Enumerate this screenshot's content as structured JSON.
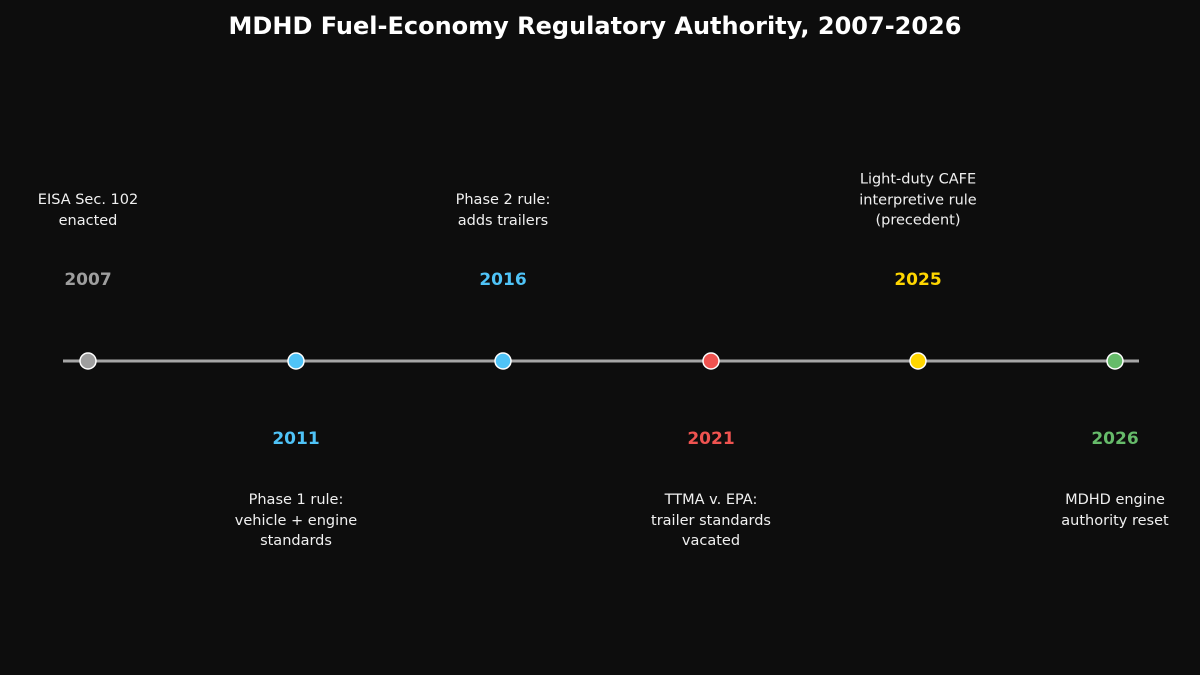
{
  "title": "MDHD Fuel-Economy Regulatory Authority, 2007-2026",
  "colors": {
    "background": "#0d0d0d",
    "axis": "#a6a6a6",
    "gray": "#9e9e9e",
    "blue": "#4fc3f7",
    "red": "#ef5350",
    "yellow": "#ffd600",
    "green": "#66bb6a"
  },
  "events": [
    {
      "year": "2007",
      "label": "EISA Sec. 102\nenacted",
      "position": "above",
      "color": "#9e9e9e"
    },
    {
      "year": "2011",
      "label": "Phase 1 rule:\nvehicle + engine\nstandards",
      "position": "below",
      "color": "#4fc3f7"
    },
    {
      "year": "2016",
      "label": "Phase 2 rule:\nadds trailers",
      "position": "above",
      "color": "#4fc3f7"
    },
    {
      "year": "2021",
      "label": "TTMA v. EPA:\ntrailer standards\nvacated",
      "position": "below",
      "color": "#ef5350"
    },
    {
      "year": "2025",
      "label": "Light-duty CAFE\ninterpretive rule\n(precedent)",
      "position": "above",
      "color": "#ffd600"
    },
    {
      "year": "2026",
      "label": "MDHD engine\nauthority reset",
      "position": "below",
      "color": "#66bb6a"
    }
  ]
}
